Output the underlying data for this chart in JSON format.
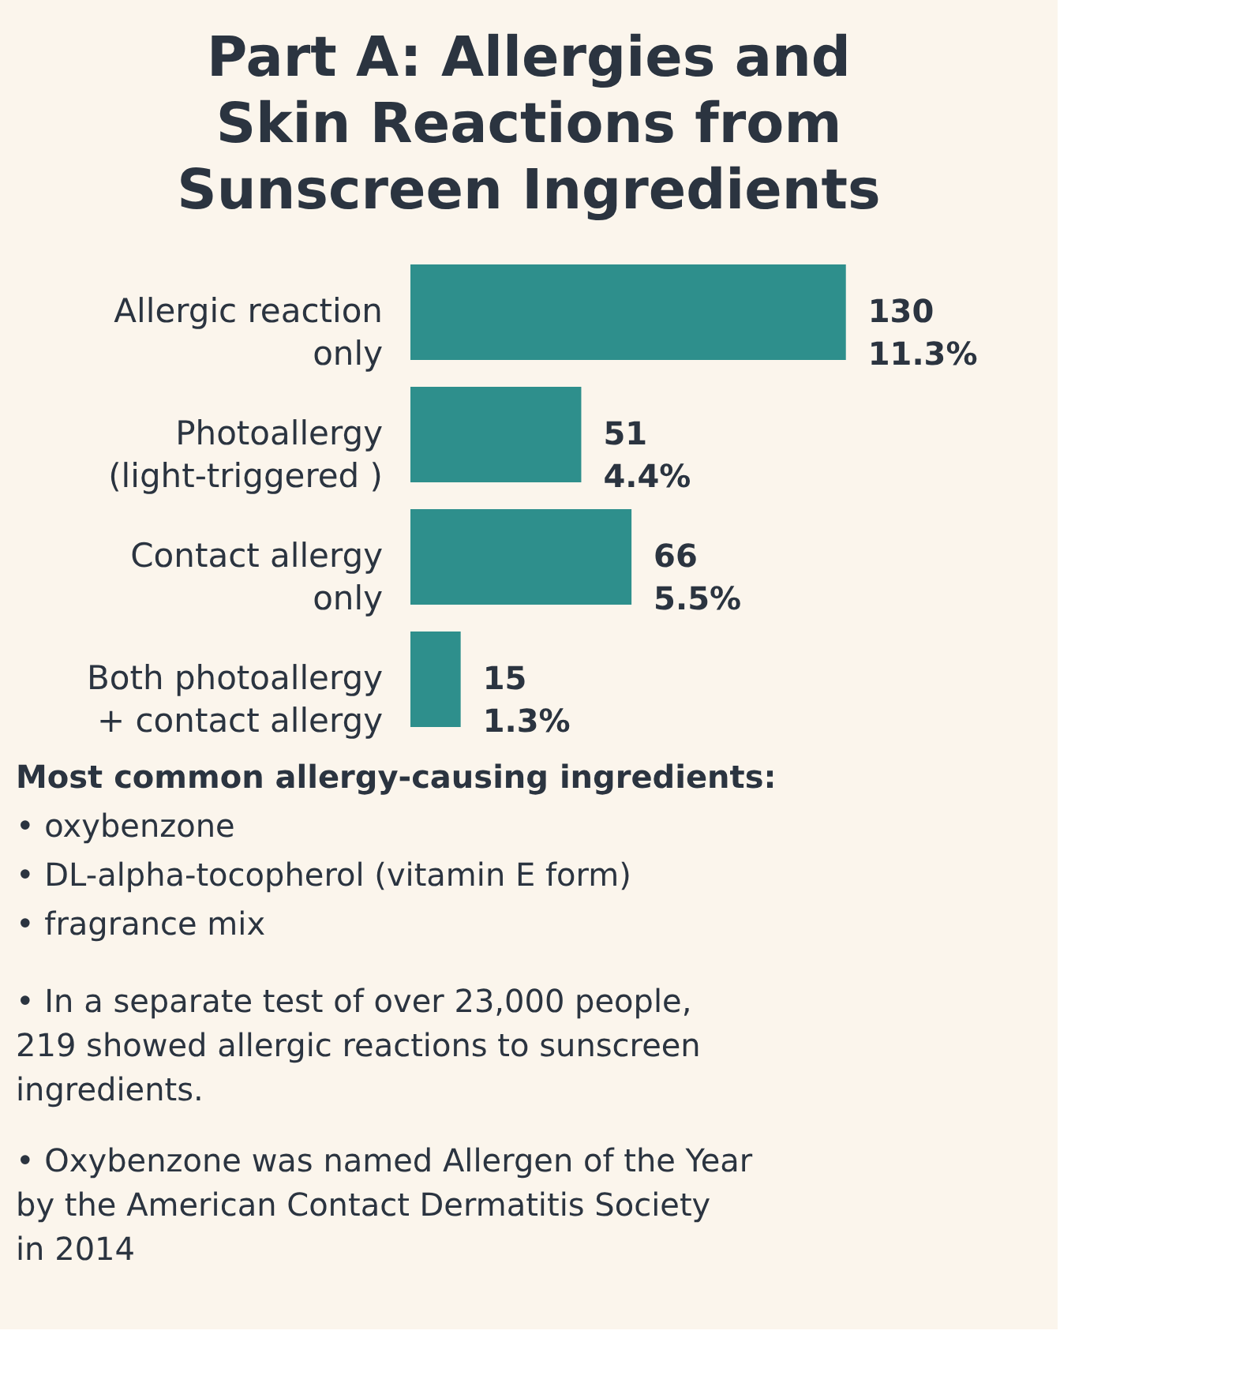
{
  "chart_data": {
    "type": "bar",
    "orientation": "horizontal",
    "title": "Part A: Allergies and\nSkin Reactions from\nSunscreen Ingredients",
    "categories": [
      "Allergic reaction\nonly",
      "Photoallergy\n(light-triggered )",
      "Contact allergy\nonly",
      "Both photoallergy\n+ contact allergy"
    ],
    "values": [
      130,
      51,
      66,
      15
    ],
    "color": "#2e8f8c",
    "value_labels": [
      "130\n11.3%",
      "51\n4.4%",
      "66\n5.5%",
      "15\n1.3%"
    ],
    "annotations": [
      "Most common allergy-causing ingredients:",
      "• oxybenzone",
      "• DL-alpha-tocopherol (vitamin E form)",
      "• fragrance mix",
      "• In a separate test of over 23,000 people,\n219 showed allergic reactions to sunscreen\ningredients.",
      "• Oxybenzone was named Allergen of the Year\nby the American Contact Dermatitis Society\nin 2014"
    ]
  }
}
